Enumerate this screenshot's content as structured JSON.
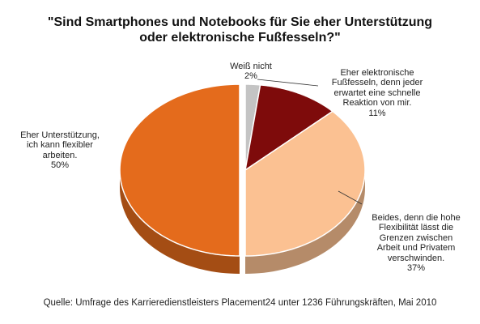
{
  "chart_data": {
    "type": "pie",
    "title_lines": [
      "\"Sind Smartphones und Notebooks für Sie eher Unterstützung",
      "oder elektronische Fußfesseln?\""
    ],
    "slices": [
      {
        "label": "Eher Unterstützung,\nich kann flexibler\narbeiten.",
        "value": 50,
        "value_text": "50%",
        "color": "#e46b1c"
      },
      {
        "label": "Weiß nicht",
        "value": 2,
        "value_text": "2%",
        "color": "#c4c4c4"
      },
      {
        "label": "Eher elektronische\nFußfesseln, denn jeder\nerwartet eine schnelle\nReaktion von mir.",
        "value": 11,
        "value_text": "11%",
        "color": "#7e0b0b"
      },
      {
        "label": "Beides, denn die hohe\nFlexibilität lässt die\nGrenzen zwischen\nArbeit und Privatem\nverschwinden.",
        "value": 37,
        "value_text": "37%",
        "color": "#fbc192"
      }
    ],
    "source": "Quelle: Umfrage des Karrieredienstleisters Placement24 unter 1236 Führungskräften, Mai 2010"
  }
}
